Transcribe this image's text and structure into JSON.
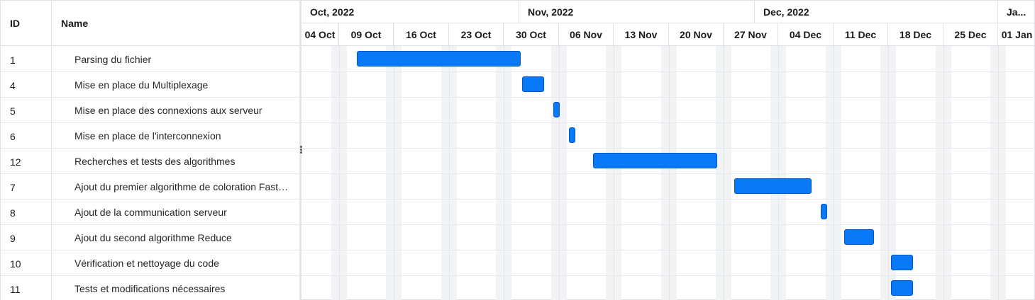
{
  "grid": {
    "col_id": "ID",
    "col_name": "Name",
    "rows": [
      {
        "id": "1",
        "name": "Parsing du fichier"
      },
      {
        "id": "4",
        "name": "Mise en place du Multiplexage"
      },
      {
        "id": "5",
        "name": "Mise en place des connexions aux serveur"
      },
      {
        "id": "6",
        "name": "Mise en place de l'interconnexion"
      },
      {
        "id": "12",
        "name": "Recherches et tests des algorithmes"
      },
      {
        "id": "7",
        "name": "Ajout du premier algorithme de coloration Fast…"
      },
      {
        "id": "8",
        "name": "Ajout de la communication serveur"
      },
      {
        "id": "9",
        "name": "Ajout du second algorithme Reduce"
      },
      {
        "id": "10",
        "name": "Vérification et nettoyage du code"
      },
      {
        "id": "11",
        "name": "Tests et modifications nécessaires"
      }
    ]
  },
  "timeline": {
    "months": [
      "Oct, 2022",
      "Nov, 2022",
      "Dec, 2022",
      "Ja..."
    ],
    "weeks": [
      "04 Oct",
      "09 Oct",
      "16 Oct",
      "23 Oct",
      "30 Oct",
      "06 Nov",
      "13 Nov",
      "20 Nov",
      "27 Nov",
      "04 Dec",
      "11 Dec",
      "18 Dec",
      "25 Dec",
      "01 Jan"
    ]
  },
  "colors": {
    "bar_fill": "#0a79f7",
    "bar_border": "#0057bd"
  },
  "tasks": [
    {
      "row": 0,
      "start": "2022-10-11",
      "end": "2022-10-31"
    },
    {
      "row": 1,
      "start": "2022-11-01",
      "end": "2022-11-03"
    },
    {
      "row": 2,
      "start": "2022-11-05",
      "end": "2022-11-05"
    },
    {
      "row": 3,
      "start": "2022-11-07",
      "end": "2022-11-07"
    },
    {
      "row": 4,
      "start": "2022-11-10",
      "end": "2022-11-25"
    },
    {
      "row": 5,
      "start": "2022-11-28",
      "end": "2022-12-07"
    },
    {
      "row": 6,
      "start": "2022-12-09",
      "end": "2022-12-09"
    },
    {
      "row": 7,
      "start": "2022-12-12",
      "end": "2022-12-15"
    },
    {
      "row": 8,
      "start": "2022-12-18",
      "end": "2022-12-20"
    },
    {
      "row": 9,
      "start": "2022-12-18",
      "end": "2022-12-20"
    }
  ]
}
